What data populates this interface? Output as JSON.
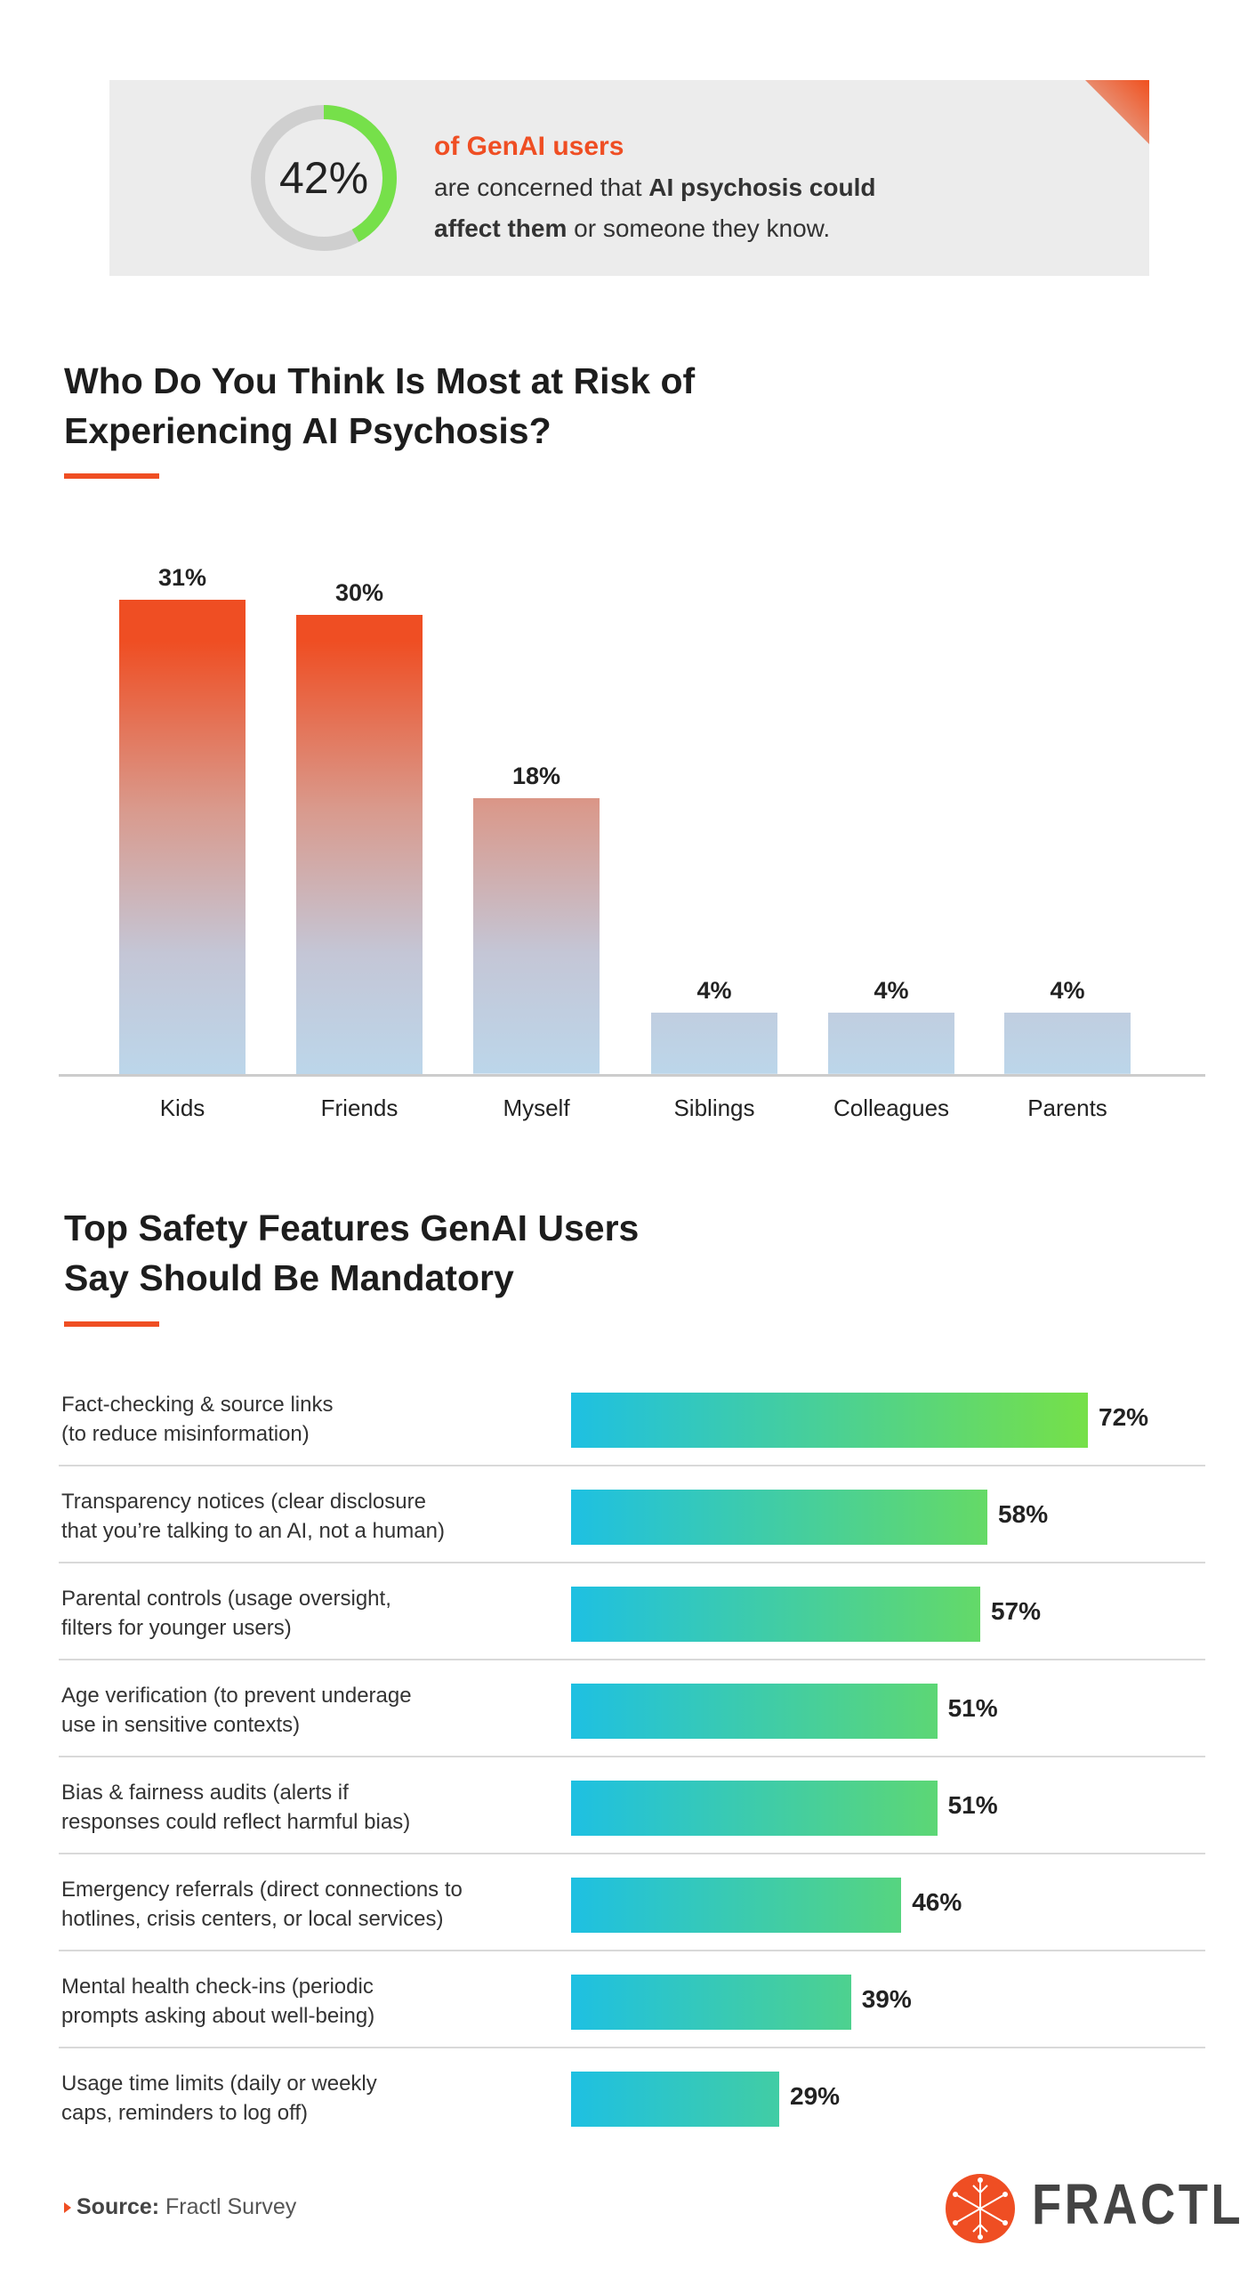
{
  "callout": {
    "value": "42%",
    "fraction": 0.42,
    "headline": "of GenAI users",
    "text_pre": "are concerned that ",
    "text_bold1": "AI psychosis could",
    "text_bold2": "affect them",
    "text_post": " or someone they know.",
    "colors": {
      "ring": "#76e04a",
      "track": "#cfcfcf",
      "accent": "#ef4e23"
    }
  },
  "chart_data": [
    {
      "type": "bar",
      "title": "Who Do You Think Is Most at Risk of Experiencing AI Psychosis?",
      "categories": [
        "Kids",
        "Friends",
        "Myself",
        "Siblings",
        "Colleagues",
        "Parents"
      ],
      "values": [
        31,
        30,
        18,
        4,
        4,
        4
      ],
      "labels": [
        "31%",
        "30%",
        "18%",
        "4%",
        "4%",
        "4%"
      ],
      "unit": "%",
      "grid": false,
      "colors": {
        "top": "#ef4e23",
        "bottom": "#bcd6ea"
      }
    },
    {
      "type": "bar",
      "orientation": "horizontal",
      "title": "Top Safety Features GenAI Users Say Should Be Mandatory",
      "categories": [
        "Fact-checking & source links\n(to reduce misinformation)",
        "Transparency notices (clear disclosure\nthat you’re talking to an AI, not a human)",
        "Parental controls (usage oversight,\nfilters for younger users)",
        "Age verification (to prevent underage\nuse in sensitive contexts)",
        "Bias & fairness audits (alerts if\nresponses could reflect harmful bias)",
        "Emergency referrals (direct connections to\nhotlines, crisis centers, or local services)",
        "Mental health check-ins (periodic\nprompts asking about well-being)",
        "Usage time limits (daily or weekly\ncaps, reminders to log off)"
      ],
      "values": [
        72,
        58,
        57,
        51,
        51,
        46,
        39,
        29
      ],
      "labels": [
        "72%",
        "58%",
        "57%",
        "51%",
        "51%",
        "46%",
        "39%",
        "29%"
      ],
      "unit": "%",
      "grid": false,
      "colors": {
        "start": "#1ec0e2",
        "end": "#76e048"
      }
    }
  ],
  "footer": {
    "source_label": "Source:",
    "source_text": " Fractl Survey",
    "logo_text": "FRACTL"
  }
}
